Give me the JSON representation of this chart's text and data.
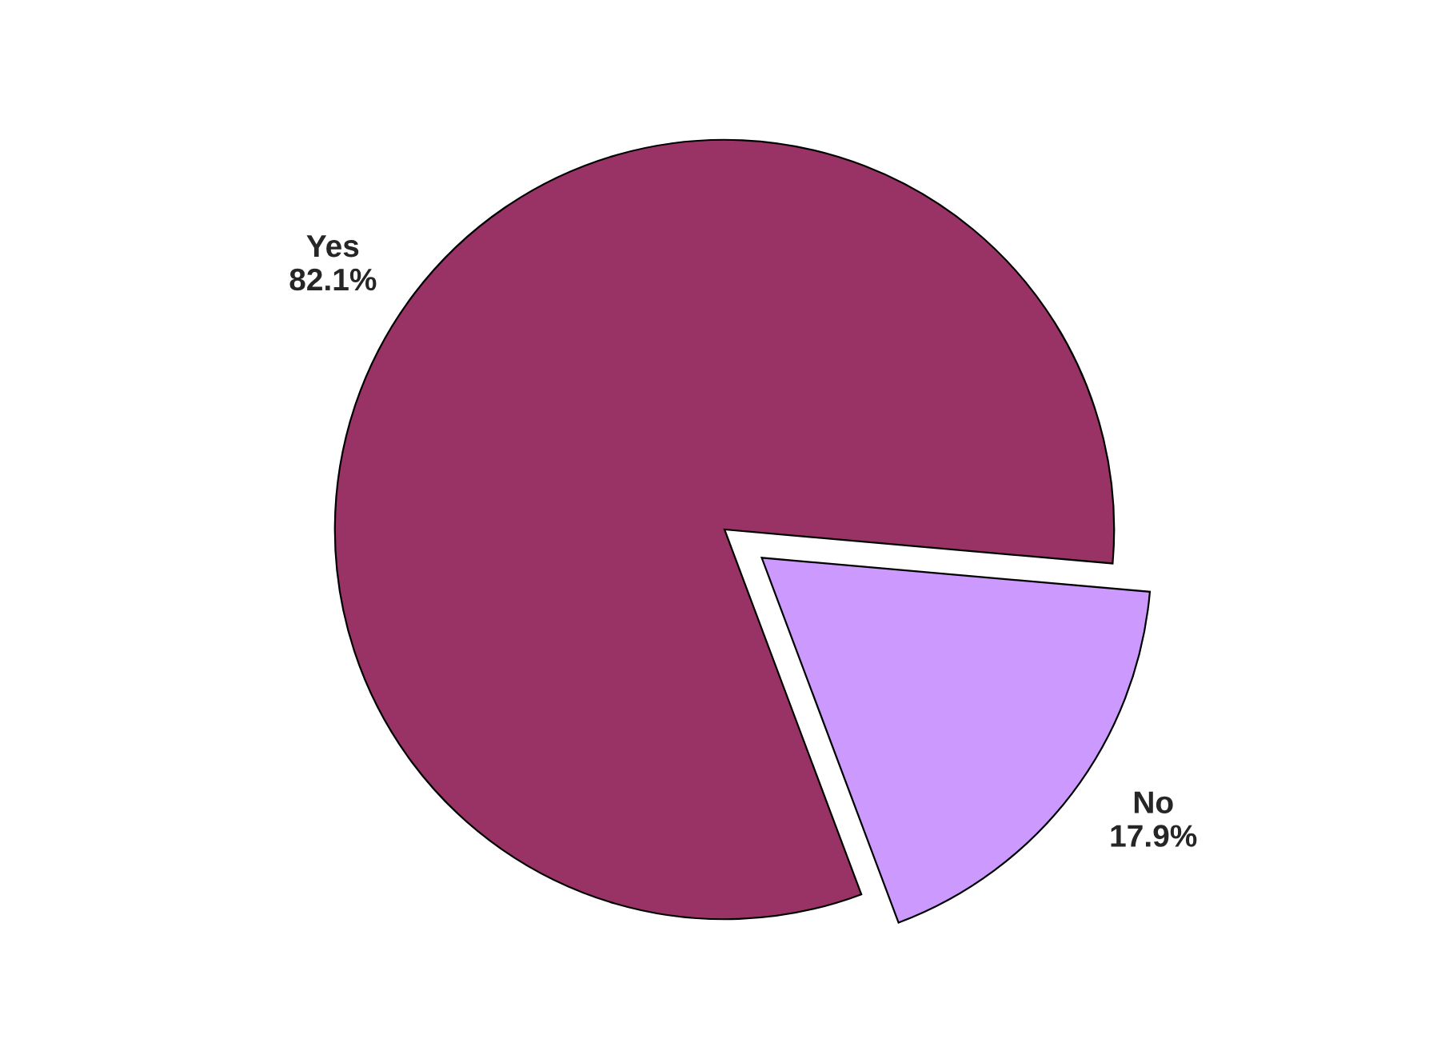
{
  "chart_data": {
    "type": "pie",
    "categories": [
      "Yes",
      "No"
    ],
    "values": [
      82.1,
      17.9
    ],
    "value_labels": [
      "82.1%",
      "17.9%"
    ],
    "colors": [
      "#993366",
      "#cc99ff"
    ]
  }
}
